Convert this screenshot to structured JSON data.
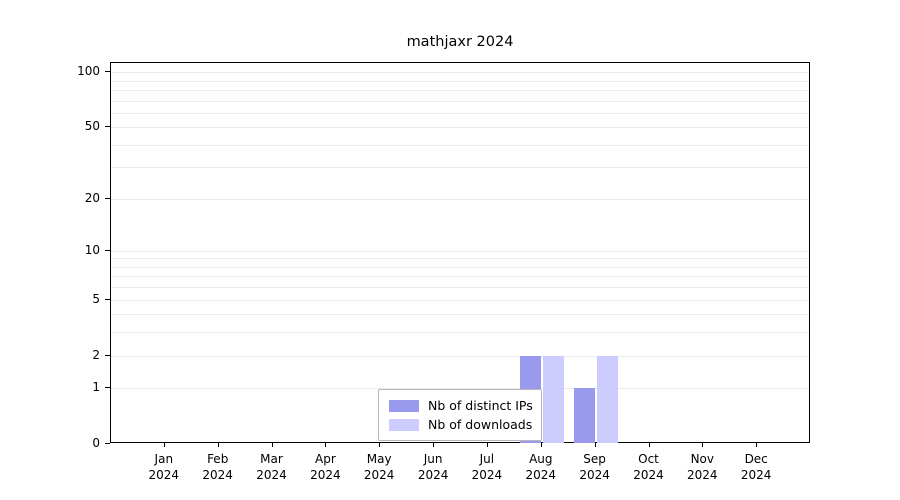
{
  "chart_data": {
    "type": "bar",
    "title": "mathjaxr 2024",
    "categories": [
      "Jan",
      "Feb",
      "Mar",
      "Apr",
      "May",
      "Jun",
      "Jul",
      "Aug",
      "Sep",
      "Oct",
      "Nov",
      "Dec"
    ],
    "x_year": "2024",
    "series": [
      {
        "name": "Nb of distinct IPs",
        "color": "#9999ee",
        "values": [
          0,
          0,
          0,
          0,
          0,
          0,
          0,
          2,
          1,
          0,
          0,
          0
        ]
      },
      {
        "name": "Nb of downloads",
        "color": "#ccccff",
        "values": [
          0,
          0,
          0,
          0,
          0,
          0,
          0,
          2,
          2,
          0,
          0,
          0
        ]
      }
    ],
    "yticks": [
      100,
      50,
      20,
      10,
      5,
      2,
      1,
      0
    ],
    "gridline_values": [
      1,
      2,
      3,
      4,
      5,
      6,
      7,
      8,
      9,
      10,
      20,
      30,
      40,
      50,
      60,
      70,
      80,
      90,
      100
    ],
    "scale": "log1p",
    "ylim": [
      0,
      112
    ],
    "grid": "horizontal",
    "legend_position": "bottom-center"
  }
}
